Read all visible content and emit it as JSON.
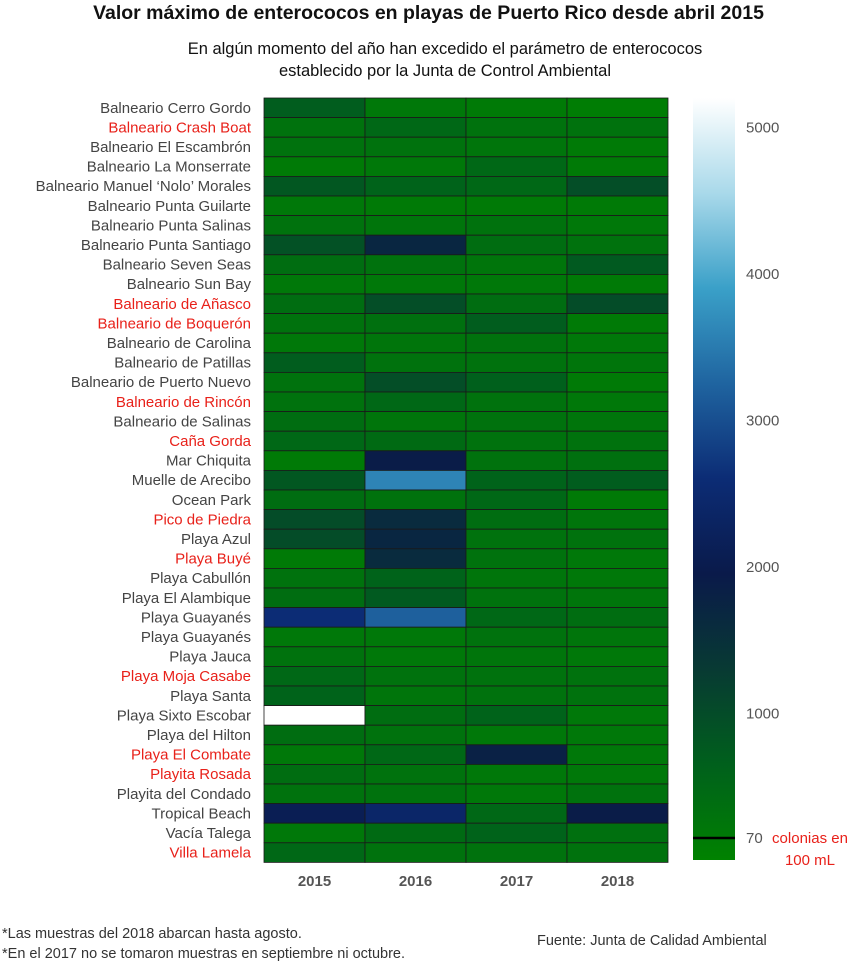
{
  "title": "Valor máximo de enterococos en playas de Puerto Rico desde abril 2015",
  "subtitle": "En algún momento del año han excedido el parámetro de enterococos establecido por la Junta de Control Ambiental",
  "footnotes": [
    "*Las muestras del 2018 abarcan hasta agosto.",
    "*En el 2017 no se tomaron muestras en septiembre ni octubre."
  ],
  "source": "Fuente: Junta de Calidad Ambiental",
  "colors": {
    "highlight_label": "#e8211a",
    "normal_label": "#444444",
    "scale": [
      "#008200",
      "#00601c",
      "#083a33",
      "#0a1a4a",
      "#0c2c75",
      "#1f64a0",
      "#3aa0c8",
      "#a9d9ea",
      "#ffffff"
    ]
  },
  "chart_data": {
    "type": "heatmap",
    "columns": [
      "2015",
      "2016",
      "2017",
      "2018"
    ],
    "rows": [
      {
        "name": "Balneario Cerro Gordo",
        "highlight": false,
        "values": [
          700,
          200,
          150,
          100
        ]
      },
      {
        "name": "Balneario Crash Boat",
        "highlight": true,
        "values": [
          300,
          500,
          300,
          300
        ]
      },
      {
        "name": "Balneario El Escambrón",
        "highlight": false,
        "values": [
          300,
          300,
          250,
          150
        ]
      },
      {
        "name": "Balneario La Monserrate",
        "highlight": false,
        "values": [
          150,
          200,
          500,
          150
        ]
      },
      {
        "name": "Balneario Manuel ‘Nolo’ Morales",
        "highlight": false,
        "values": [
          800,
          600,
          500,
          950
        ]
      },
      {
        "name": "Balneario Punta Guilarte",
        "highlight": false,
        "values": [
          200,
          150,
          150,
          150
        ]
      },
      {
        "name": "Balneario Punta Salinas",
        "highlight": false,
        "values": [
          300,
          250,
          300,
          200
        ]
      },
      {
        "name": "Balneario Punta Santiago",
        "highlight": false,
        "values": [
          900,
          1700,
          400,
          300
        ]
      },
      {
        "name": "Balneario Seven Seas",
        "highlight": false,
        "values": [
          400,
          300,
          250,
          750
        ]
      },
      {
        "name": "Balneario Sun Bay",
        "highlight": false,
        "values": [
          200,
          200,
          200,
          150
        ]
      },
      {
        "name": "Balneario de Añasco",
        "highlight": true,
        "values": [
          400,
          950,
          400,
          1000
        ]
      },
      {
        "name": "Balneario de Boquerón",
        "highlight": true,
        "values": [
          300,
          350,
          700,
          150
        ]
      },
      {
        "name": "Balneario de Carolina",
        "highlight": false,
        "values": [
          200,
          250,
          300,
          200
        ]
      },
      {
        "name": "Balneario de Patillas",
        "highlight": false,
        "values": [
          700,
          300,
          300,
          250
        ]
      },
      {
        "name": "Balneario de Puerto Nuevo",
        "highlight": false,
        "values": [
          300,
          950,
          650,
          150
        ]
      },
      {
        "name": "Balneario de Rincón",
        "highlight": true,
        "values": [
          300,
          500,
          300,
          200
        ]
      },
      {
        "name": "Balneario de Salinas",
        "highlight": false,
        "values": [
          400,
          250,
          300,
          250
        ]
      },
      {
        "name": "Caña Gorda",
        "highlight": true,
        "values": [
          500,
          450,
          300,
          300
        ]
      },
      {
        "name": "Mar Chiquita",
        "highlight": false,
        "values": [
          150,
          1900,
          300,
          350
        ]
      },
      {
        "name": "Muelle de Arecibo",
        "highlight": false,
        "values": [
          800,
          3600,
          600,
          700
        ]
      },
      {
        "name": "Ocean Park",
        "highlight": false,
        "values": [
          400,
          300,
          500,
          150
        ]
      },
      {
        "name": "Pico de Piedra",
        "highlight": true,
        "values": [
          1000,
          1600,
          400,
          250
        ]
      },
      {
        "name": "Playa Azul",
        "highlight": false,
        "values": [
          1000,
          1700,
          300,
          300
        ]
      },
      {
        "name": "Playa Buyé",
        "highlight": true,
        "values": [
          150,
          1600,
          300,
          200
        ]
      },
      {
        "name": "Playa Cabullón",
        "highlight": false,
        "values": [
          300,
          600,
          250,
          200
        ]
      },
      {
        "name": "Playa El Alambique",
        "highlight": false,
        "values": [
          400,
          750,
          300,
          250
        ]
      },
      {
        "name": "Playa Guayanés",
        "highlight": false,
        "values": [
          2600,
          3200,
          500,
          400
        ]
      },
      {
        "name": "Playa Guayanés ",
        "highlight": false,
        "values": [
          200,
          200,
          300,
          250
        ]
      },
      {
        "name": "Playa Jauca",
        "highlight": false,
        "values": [
          300,
          200,
          250,
          200
        ]
      },
      {
        "name": "Playa Moja Casabe",
        "highlight": true,
        "values": [
          500,
          300,
          300,
          300
        ]
      },
      {
        "name": "Playa Santa",
        "highlight": false,
        "values": [
          600,
          250,
          300,
          300
        ]
      },
      {
        "name": "Playa Sixto Escobar",
        "highlight": false,
        "values": [
          5200,
          400,
          600,
          200
        ]
      },
      {
        "name": "Playa del Hilton",
        "highlight": false,
        "values": [
          400,
          300,
          200,
          200
        ]
      },
      {
        "name": "Playa El Combate",
        "highlight": true,
        "values": [
          200,
          500,
          1800,
          200
        ]
      },
      {
        "name": "Playita Rosada",
        "highlight": true,
        "values": [
          400,
          300,
          200,
          200
        ]
      },
      {
        "name": "Playita del Condado",
        "highlight": false,
        "values": [
          300,
          300,
          200,
          300
        ]
      },
      {
        "name": "Tropical Beach",
        "highlight": false,
        "values": [
          2100,
          2400,
          500,
          1900
        ]
      },
      {
        "name": "Vacía Talega",
        "highlight": false,
        "values": [
          200,
          450,
          600,
          350
        ]
      },
      {
        "name": "Villa Lamela",
        "highlight": true,
        "values": [
          500,
          300,
          300,
          300
        ]
      }
    ],
    "colorbar": {
      "ticks": [
        1000,
        2000,
        3000,
        4000,
        5000
      ],
      "threshold_value": 70,
      "threshold_label": "70",
      "threshold_unit_lines": [
        "colonias en",
        "100 mL"
      ],
      "range": [
        0,
        5200
      ]
    }
  }
}
